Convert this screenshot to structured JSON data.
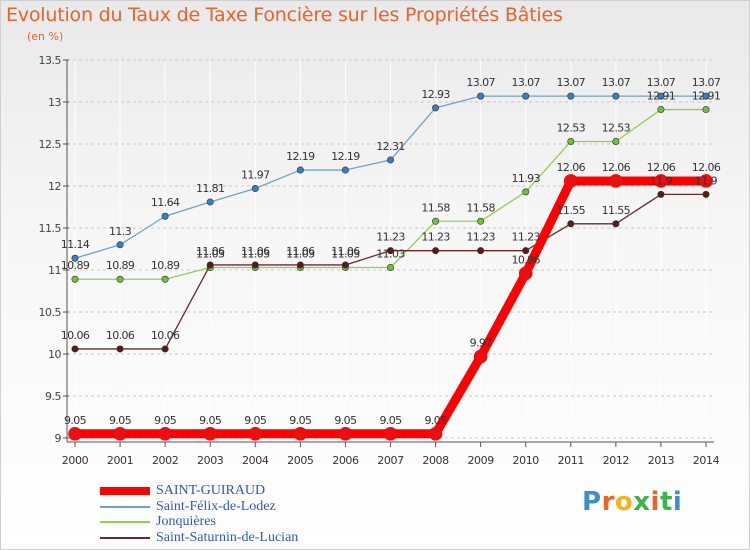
{
  "title": "Evolution du Taux de Taxe Foncière sur les Propriétés Bâties",
  "subtitle": "(en %)",
  "logo": {
    "text": "Proxiti",
    "colors": [
      "#3b8fd1",
      "#e8642a",
      "#f2b41d",
      "#3bb54a",
      "#e8642a",
      "#3bb54a",
      "#3b8fd1"
    ]
  },
  "chart_data": {
    "type": "line",
    "title": "Evolution du Taux de Taxe Foncière sur les Propriétés Bâties",
    "ylabel": "(en %)",
    "xlabel": "",
    "x": [
      "2000",
      "2001",
      "2002",
      "2003",
      "2004",
      "2005",
      "2006",
      "2007",
      "2008",
      "2009",
      "2010",
      "2011",
      "2012",
      "2013",
      "2014"
    ],
    "ylim": [
      9,
      13.5
    ],
    "yticks": [
      "9",
      "9.5",
      "10",
      "10.5",
      "11",
      "11.5",
      "12",
      "12.5",
      "13",
      "13.5"
    ],
    "grid": "horizontal",
    "legend_position": "bottom-left",
    "series": [
      {
        "name": "SAINT-GUIRAUD",
        "color": "#ff0000",
        "marker": "#e81010",
        "width": 9,
        "values": [
          9.05,
          9.05,
          9.05,
          9.05,
          9.05,
          9.05,
          9.05,
          9.05,
          9.05,
          9.97,
          10.96,
          12.06,
          12.06,
          12.06,
          12.06
        ],
        "labels": [
          "9.05",
          "9.05",
          "9.05",
          "9.05",
          "9.05",
          "9.05",
          "9.05",
          "9.05",
          "9.05",
          "9.97",
          "10.96",
          "12.06",
          "12.06",
          "12.06",
          "12.06"
        ]
      },
      {
        "name": "Saint-Félix-de-Lodez",
        "color": "#6ea1cc",
        "marker": "#3a7ec0",
        "width": 1.3,
        "values": [
          11.14,
          11.3,
          11.64,
          11.81,
          11.97,
          12.19,
          12.19,
          12.31,
          12.93,
          13.07,
          13.07,
          13.07,
          13.07,
          13.07,
          13.07
        ],
        "labels": [
          "11.14",
          "11.3",
          "11.64",
          "11.81",
          "11.97",
          "12.19",
          "12.19",
          "12.31",
          "12.93",
          "13.07",
          "13.07",
          "13.07",
          "13.07",
          "13.07",
          "13.07"
        ]
      },
      {
        "name": "Jonquières",
        "color": "#8fd14f",
        "marker": "#6cc23a",
        "width": 1.3,
        "values": [
          10.89,
          10.89,
          10.89,
          11.03,
          11.03,
          11.03,
          11.03,
          11.03,
          11.58,
          11.58,
          11.93,
          12.53,
          12.53,
          12.91,
          12.91
        ],
        "labels": [
          "10.89",
          "10.89",
          "10.89",
          "11.03",
          "11.03",
          "11.03",
          "11.03",
          "11.03",
          "11.58",
          "11.58",
          "11.93",
          "12.53",
          "12.53",
          "12.91",
          "12.91"
        ]
      },
      {
        "name": "Saint-Saturnin-de-Lucian",
        "color": "#6b2a2a",
        "marker": "#5a1a1a",
        "width": 1.3,
        "values": [
          10.06,
          10.06,
          10.06,
          11.06,
          11.06,
          11.06,
          11.06,
          11.23,
          11.23,
          11.23,
          11.23,
          11.55,
          11.55,
          11.9,
          11.9
        ],
        "labels": [
          "10.06",
          "10.06",
          "10.06",
          "11.06",
          "11.06",
          "11.06",
          "11.06",
          "11.23",
          "11.23",
          "11.23",
          "11.23",
          "11.55",
          "11.55",
          "11.9",
          "11.9"
        ]
      }
    ]
  }
}
